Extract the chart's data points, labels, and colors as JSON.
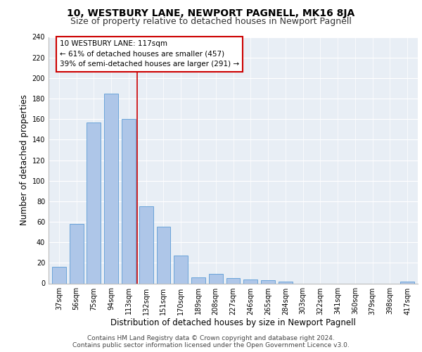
{
  "title1": "10, WESTBURY LANE, NEWPORT PAGNELL, MK16 8JA",
  "title2": "Size of property relative to detached houses in Newport Pagnell",
  "xlabel": "Distribution of detached houses by size in Newport Pagnell",
  "ylabel": "Number of detached properties",
  "categories": [
    "37sqm",
    "56sqm",
    "75sqm",
    "94sqm",
    "113sqm",
    "132sqm",
    "151sqm",
    "170sqm",
    "189sqm",
    "208sqm",
    "227sqm",
    "246sqm",
    "265sqm",
    "284sqm",
    "303sqm",
    "322sqm",
    "341sqm",
    "360sqm",
    "379sqm",
    "398sqm",
    "417sqm"
  ],
  "values": [
    16,
    58,
    157,
    185,
    160,
    75,
    55,
    27,
    6,
    9,
    5,
    4,
    3,
    2,
    0,
    0,
    0,
    0,
    0,
    0,
    2
  ],
  "bar_color": "#aec6e8",
  "bar_edge_color": "#5b9bd5",
  "bar_width": 0.8,
  "vline_x": 4.5,
  "vline_color": "#cc0000",
  "annotation_text": "10 WESTBURY LANE: 117sqm\n← 61% of detached houses are smaller (457)\n39% of semi-detached houses are larger (291) →",
  "annotation_box_color": "#ffffff",
  "annotation_box_edge": "#cc0000",
  "ylim": [
    0,
    240
  ],
  "yticks": [
    0,
    20,
    40,
    60,
    80,
    100,
    120,
    140,
    160,
    180,
    200,
    220,
    240
  ],
  "background_color": "#e8eef5",
  "grid_color": "#ffffff",
  "footnote1": "Contains HM Land Registry data © Crown copyright and database right 2024.",
  "footnote2": "Contains public sector information licensed under the Open Government Licence v3.0.",
  "title1_fontsize": 10,
  "title2_fontsize": 9,
  "xlabel_fontsize": 8.5,
  "ylabel_fontsize": 8.5,
  "tick_fontsize": 7,
  "annotation_fontsize": 7.5,
  "footnote_fontsize": 6.5
}
